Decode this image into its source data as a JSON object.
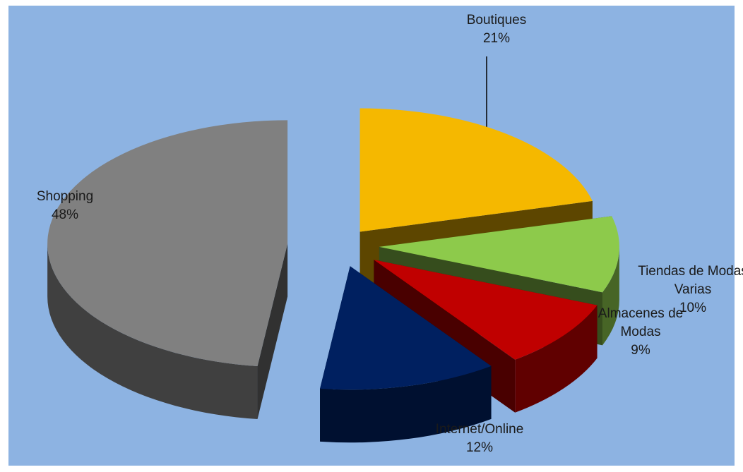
{
  "chart_data": {
    "type": "pie3d",
    "categories": [
      "Boutiques",
      "Tiendas de Modas Varias",
      "Almacenes de Modas",
      "Internet/Online",
      "Shopping"
    ],
    "values": [
      21,
      10,
      9,
      12,
      48
    ],
    "value_labels": [
      "21%",
      "10%",
      "9%",
      "12%",
      "48%"
    ],
    "colors": [
      "#f5b800",
      "#8dca4b",
      "#c00000",
      "#002060",
      "#808080"
    ]
  }
}
